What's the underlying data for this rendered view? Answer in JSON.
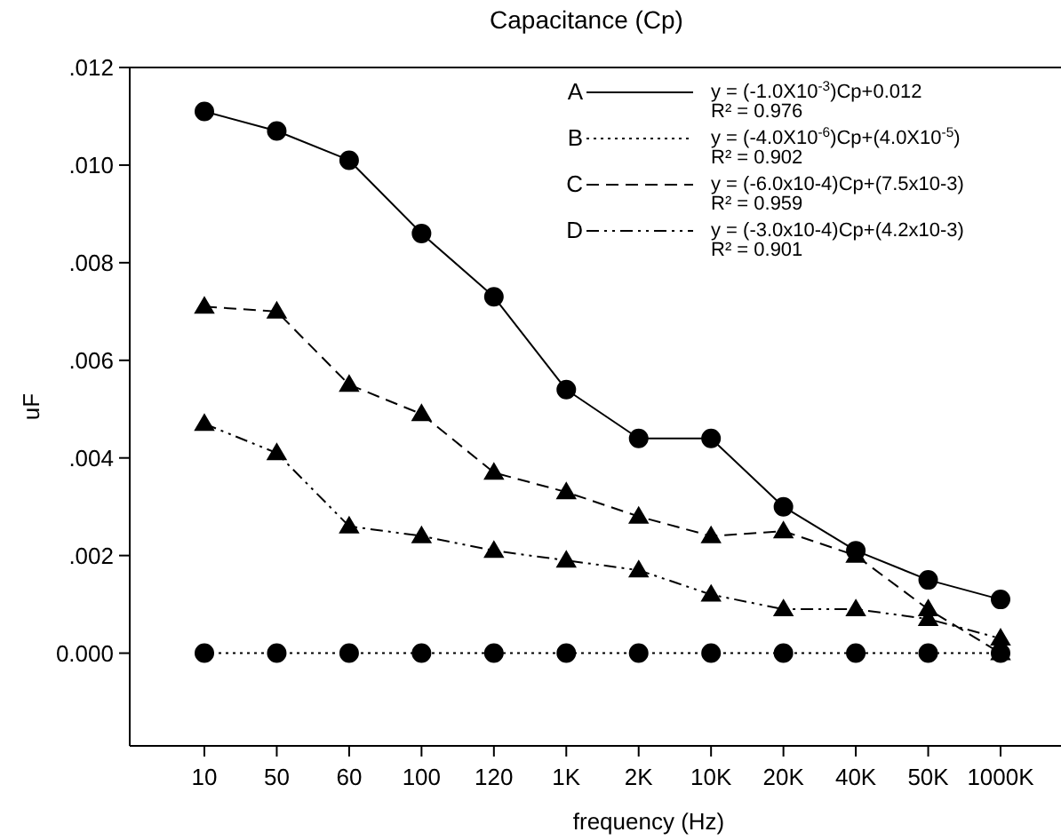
{
  "chart_data": {
    "type": "line",
    "title": "Capacitance (Cp)",
    "xlabel": "frequency (Hz)",
    "ylabel": "uF",
    "categories": [
      "10",
      "50",
      "60",
      "100",
      "120",
      "1K",
      "2K",
      "10K",
      "20K",
      "40K",
      "50K",
      "1000K"
    ],
    "ylim": [
      -0.0019,
      0.012
    ],
    "yticks": [
      {
        "value": 0,
        "label": "0.000"
      },
      {
        "value": 0.002,
        "label": ".002"
      },
      {
        "value": 0.004,
        "label": ".004"
      },
      {
        "value": 0.006,
        "label": ".006"
      },
      {
        "value": 0.008,
        "label": ".008"
      },
      {
        "value": 0.01,
        "label": ".010"
      },
      {
        "value": 0.012,
        "label": ".012"
      }
    ],
    "legend": "top right",
    "grid": false,
    "series": [
      {
        "name": "A",
        "color": "#000000",
        "marker": "circle",
        "line_style": "solid",
        "values": [
          0.0111,
          0.0107,
          0.0101,
          0.0086,
          0.0073,
          0.0054,
          0.0044,
          0.0044,
          0.003,
          0.0021,
          0.0015,
          0.0011
        ]
      },
      {
        "name": "B",
        "color": "#000000",
        "marker": "circle",
        "line_style": "dotted",
        "values": [
          0,
          0,
          0,
          0,
          0,
          0,
          0,
          0,
          0,
          0,
          0,
          0
        ]
      },
      {
        "name": "C",
        "color": "#000000",
        "marker": "triangle",
        "line_style": "dashed",
        "values": [
          0.0071,
          0.007,
          0.0055,
          0.0049,
          0.0037,
          0.0033,
          0.0028,
          0.0024,
          0.0025,
          0.002,
          0.0009,
          0
        ]
      },
      {
        "name": "D",
        "color": "#000000",
        "marker": "triangle",
        "line_style": "dashdot",
        "values": [
          0.0047,
          0.0041,
          0.0026,
          0.0024,
          0.0021,
          0.0019,
          0.0017,
          0.0012,
          0.0009,
          0.0009,
          0.0007,
          0.0003
        ]
      }
    ],
    "annotations": [
      "y = (-1.0X10$^{-3}$)Cp+0.012",
      "R² = 0.976",
      "y = (-4.0X10$^{-6}$)Cp+(4.0X10$^{-5}$)",
      "R² = 0.902",
      "y = (-6.0x10-4)Cp+(7.5x10-3)",
      "R² = 0.959",
      "y = (-3.0x10-4)Cp+(4.2x10-3)",
      "R² = 0.901"
    ]
  }
}
